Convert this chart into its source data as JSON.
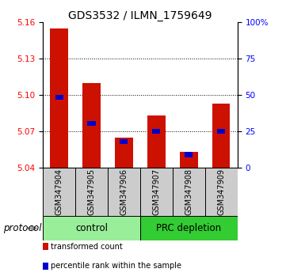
{
  "title": "GDS3532 / ILMN_1759649",
  "samples": [
    "GSM347904",
    "GSM347905",
    "GSM347906",
    "GSM347907",
    "GSM347908",
    "GSM347909"
  ],
  "base": 5.04,
  "red_tops": [
    5.155,
    5.11,
    5.065,
    5.083,
    5.053,
    5.093
  ],
  "blue_vals": [
    5.098,
    5.077,
    5.062,
    5.07,
    5.051,
    5.07
  ],
  "ylim": [
    5.04,
    5.16
  ],
  "y_ticks": [
    5.04,
    5.07,
    5.1,
    5.13,
    5.16
  ],
  "right_ticks": [
    0,
    25,
    50,
    75,
    100
  ],
  "groups": [
    {
      "label": "control",
      "start": 0,
      "end": 3,
      "color": "#99EE99"
    },
    {
      "label": "PRC depletion",
      "start": 3,
      "end": 6,
      "color": "#33CC33"
    }
  ],
  "group_row_color": "#CCCCCC",
  "bar_color": "#CC1100",
  "blue_color": "#0000CC",
  "bar_width": 0.55,
  "title_fontsize": 10,
  "tick_fontsize": 7.5,
  "label_fontsize": 8.5,
  "samp_fontsize": 7,
  "protocol_label": "protocol",
  "legend_items": [
    {
      "color": "#CC1100",
      "label": "transformed count"
    },
    {
      "color": "#0000CC",
      "label": "percentile rank within the sample"
    }
  ]
}
